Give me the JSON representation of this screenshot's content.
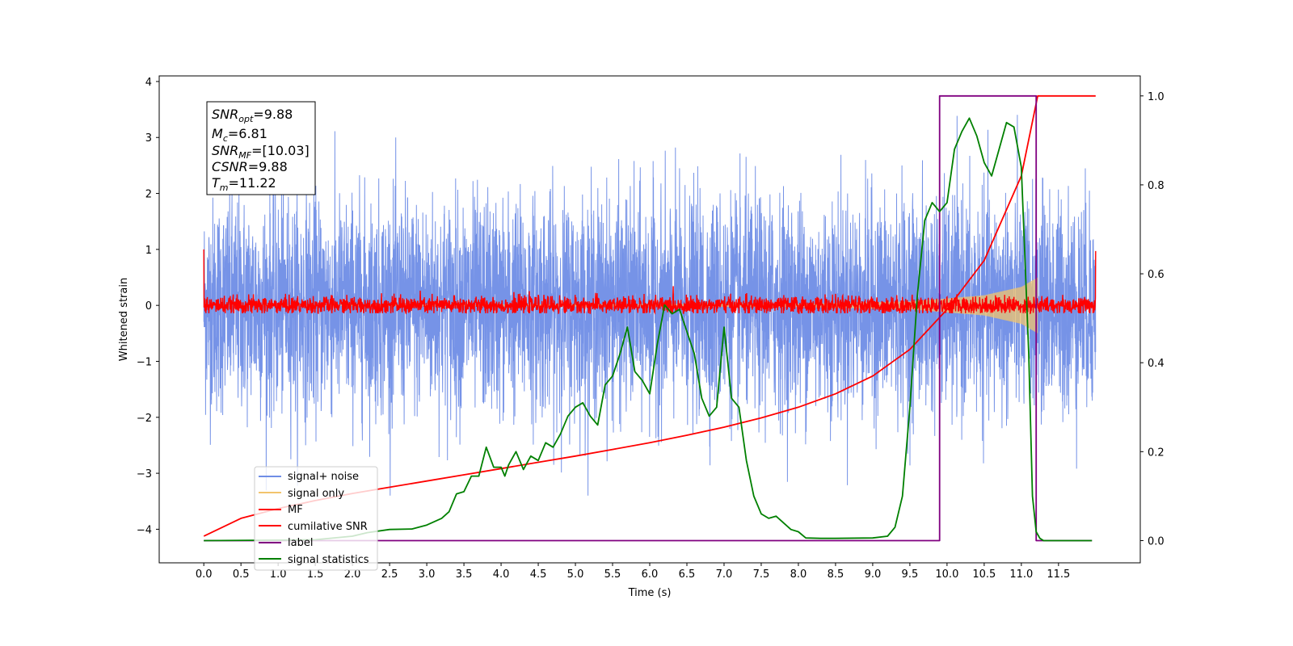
{
  "chart_data": {
    "type": "line",
    "xlabel": "Time (s)",
    "ylabel": "Whitened strain",
    "xlim": [
      -0.6,
      12.6
    ],
    "ylim": [
      -4.6,
      4.1
    ],
    "y2lim": [
      -0.05,
      1.045
    ],
    "xticks": [
      "0.0",
      "0.5",
      "1.0",
      "1.5",
      "2.0",
      "2.5",
      "3.0",
      "3.5",
      "4.0",
      "4.5",
      "5.0",
      "5.5",
      "6.0",
      "6.5",
      "7.0",
      "7.5",
      "8.0",
      "8.5",
      "9.0",
      "9.5",
      "10.0",
      "10.5",
      "11.0",
      "11.5"
    ],
    "yticks": [
      "4",
      "3",
      "2",
      "1",
      "0",
      "−1",
      "−2",
      "−3",
      "−4"
    ],
    "y2ticks": [
      "1.0",
      "0.8",
      "0.6",
      "0.4",
      "0.2",
      "0.0"
    ],
    "annotation": {
      "snr_opt": {
        "sym": "SNR",
        "sub": "opt",
        "val": "=9.88"
      },
      "mc": {
        "sym": "M",
        "sub": "c",
        "val": "=6.81"
      },
      "snr_mf": {
        "sym": "SNR",
        "sub": "MF",
        "val": "=[10.03]"
      },
      "csnr": {
        "sym": "CSNR",
        "sub": "",
        "val": "=9.88"
      },
      "tm": {
        "sym": "T",
        "sub": "m",
        "val": "=11.22"
      }
    },
    "legend": {
      "placement": "lower-left",
      "entries": [
        "signal+ noise",
        "signal only",
        "MF",
        "cumilative SNR",
        "label",
        "signal statistics"
      ]
    },
    "colors": {
      "noise": "#6f8de6",
      "signal": "#f2c46d",
      "mf": "#ff0000",
      "csnr": "#ff0000",
      "label": "#800080",
      "stats": "#008000"
    },
    "series": [
      {
        "name": "signal+ noise",
        "axis": "left",
        "description_of_values": "whitened strain noise, roughly |y| up to 3.7, mean 0"
      },
      {
        "name": "signal only",
        "axis": "left",
        "values_envelope": [
          [
            0,
            0.005
          ],
          [
            8.0,
            0.03
          ],
          [
            9.5,
            0.07
          ],
          [
            10.5,
            0.18
          ],
          [
            11.0,
            0.33
          ],
          [
            11.22,
            0.5
          ]
        ]
      },
      {
        "name": "MF",
        "axis": "left",
        "values_band": [
          -0.12,
          0.22
        ]
      },
      {
        "name": "cumilative SNR",
        "axis": "right",
        "x": [
          0.0,
          0.5,
          1.0,
          1.5,
          2.0,
          2.5,
          3.0,
          3.5,
          4.0,
          4.5,
          5.0,
          5.5,
          6.0,
          6.5,
          7.0,
          7.5,
          8.0,
          8.5,
          9.0,
          9.5,
          10.0,
          10.5,
          11.0,
          11.22,
          12.0
        ],
        "y": [
          0.01,
          0.05,
          0.072,
          0.09,
          0.106,
          0.12,
          0.134,
          0.148,
          0.162,
          0.176,
          0.19,
          0.205,
          0.22,
          0.237,
          0.255,
          0.276,
          0.3,
          0.33,
          0.37,
          0.43,
          0.52,
          0.63,
          0.82,
          1.0,
          1.0
        ]
      },
      {
        "name": "label",
        "axis": "right",
        "x": [
          0.0,
          9.9,
          9.9,
          11.2,
          11.2,
          11.95
        ],
        "y": [
          0.0,
          0.0,
          1.0,
          1.0,
          0.0,
          0.0
        ]
      },
      {
        "name": "signal statistics",
        "axis": "right",
        "x": [
          0.0,
          1.0,
          1.5,
          2.0,
          2.2,
          2.5,
          2.8,
          3.0,
          3.2,
          3.3,
          3.4,
          3.5,
          3.6,
          3.7,
          3.8,
          3.9,
          4.0,
          4.05,
          4.1,
          4.2,
          4.3,
          4.4,
          4.5,
          4.6,
          4.7,
          4.8,
          4.9,
          5.0,
          5.1,
          5.2,
          5.3,
          5.4,
          5.5,
          5.6,
          5.7,
          5.8,
          5.9,
          6.0,
          6.1,
          6.2,
          6.3,
          6.4,
          6.5,
          6.6,
          6.7,
          6.8,
          6.9,
          7.0,
          7.1,
          7.2,
          7.3,
          7.4,
          7.5,
          7.6,
          7.7,
          7.8,
          7.9,
          8.0,
          8.1,
          8.3,
          8.5,
          9.0,
          9.2,
          9.3,
          9.4,
          9.5,
          9.6,
          9.7,
          9.8,
          9.9,
          10.0,
          10.1,
          10.2,
          10.3,
          10.4,
          10.5,
          10.6,
          10.7,
          10.8,
          10.9,
          11.0,
          11.1,
          11.15,
          11.2,
          11.25,
          11.3,
          11.5,
          11.95
        ],
        "y": [
          0.0,
          0.001,
          0.002,
          0.01,
          0.018,
          0.025,
          0.026,
          0.035,
          0.05,
          0.065,
          0.105,
          0.11,
          0.145,
          0.145,
          0.21,
          0.165,
          0.165,
          0.145,
          0.17,
          0.2,
          0.16,
          0.19,
          0.18,
          0.22,
          0.21,
          0.24,
          0.28,
          0.3,
          0.31,
          0.28,
          0.26,
          0.35,
          0.37,
          0.42,
          0.48,
          0.38,
          0.36,
          0.33,
          0.44,
          0.53,
          0.51,
          0.52,
          0.47,
          0.42,
          0.32,
          0.28,
          0.3,
          0.48,
          0.32,
          0.3,
          0.18,
          0.1,
          0.06,
          0.05,
          0.055,
          0.04,
          0.025,
          0.02,
          0.006,
          0.005,
          0.005,
          0.006,
          0.01,
          0.03,
          0.1,
          0.3,
          0.55,
          0.72,
          0.76,
          0.74,
          0.76,
          0.88,
          0.92,
          0.95,
          0.91,
          0.85,
          0.82,
          0.88,
          0.94,
          0.93,
          0.84,
          0.42,
          0.1,
          0.02,
          0.005,
          0.0,
          0.0,
          0.0
        ]
      }
    ]
  }
}
